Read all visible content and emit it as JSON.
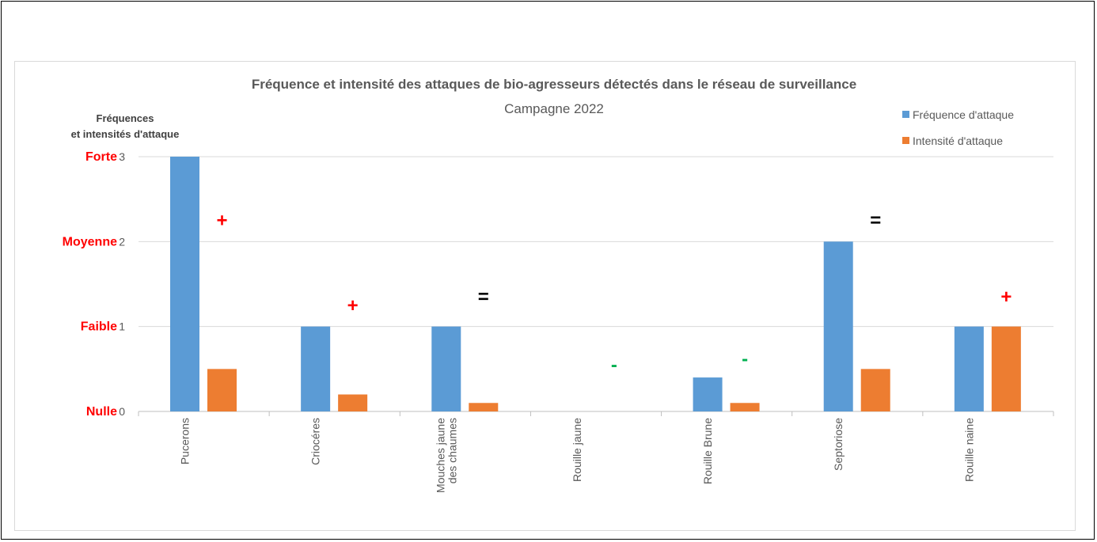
{
  "chart_data": {
    "type": "bar",
    "title": "Fréquence et intensité des attaques de bio-agresseurs détectés dans le réseau de surveillance",
    "subtitle": "Campagne 2022",
    "ylabel_lines": [
      "Fréquences",
      "et intensités d'attaque"
    ],
    "ylim": [
      0,
      3
    ],
    "yticks": [
      0,
      1,
      2,
      3
    ],
    "level_labels": [
      "Nulle",
      "Faible",
      "Moyenne",
      "Forte"
    ],
    "categories": [
      [
        "Pucerons"
      ],
      [
        "Criocéres"
      ],
      [
        "Mouches jaune",
        "des chaumes"
      ],
      [
        "Rouille jaune"
      ],
      [
        "Rouille Brune"
      ],
      [
        "Septoriose"
      ],
      [
        "Rouille naine"
      ]
    ],
    "series": [
      {
        "name": "Fréquence d'attaque",
        "color": "#5b9bd5",
        "values": [
          3,
          1,
          1,
          0,
          0.4,
          2,
          1
        ]
      },
      {
        "name": "Intensité d'attaque",
        "color": "#ed7d31",
        "values": [
          0.5,
          0.2,
          0.1,
          0,
          0.1,
          0.5,
          1
        ]
      }
    ],
    "trend_markers": [
      {
        "symbol": "+",
        "color": "#ff0000",
        "y": 2.25
      },
      {
        "symbol": "+",
        "color": "#ff0000",
        "y": 1.25
      },
      {
        "symbol": "=",
        "color": "#000000",
        "y": 1.35
      },
      {
        "symbol": "-",
        "color": "#00b050",
        "y": 0.55
      },
      {
        "symbol": "-",
        "color": "#00b050",
        "y": 0.62
      },
      {
        "symbol": "=",
        "color": "#000000",
        "y": 2.25
      },
      {
        "symbol": "+",
        "color": "#ff0000",
        "y": 1.35
      }
    ],
    "legend_position": "top-right",
    "grid": true
  }
}
